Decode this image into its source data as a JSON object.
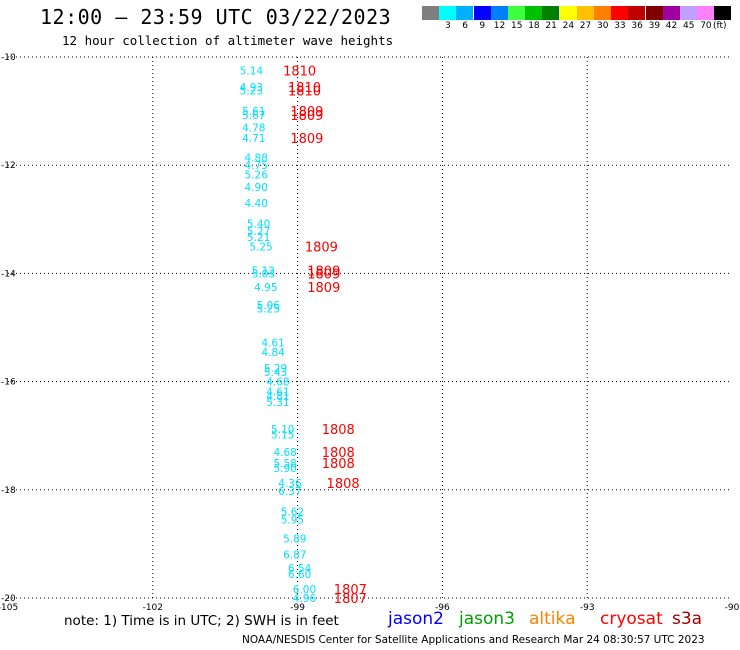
{
  "header": {
    "title": "12:00 – 23:59 UTC 03/22/2023",
    "subtitle": "12 hour collection of altimeter wave heights"
  },
  "color_legend": {
    "unit": "(ft)",
    "entries": [
      {
        "label": "",
        "color": "#7f7f7f"
      },
      {
        "label": "3",
        "color": "#00ffff"
      },
      {
        "label": "6",
        "color": "#00b0ff"
      },
      {
        "label": "9",
        "color": "#0000ff"
      },
      {
        "label": "12",
        "color": "#007fff"
      },
      {
        "label": "15",
        "color": "#40ff40"
      },
      {
        "label": "18",
        "color": "#00c000"
      },
      {
        "label": "21",
        "color": "#008000"
      },
      {
        "label": "24",
        "color": "#ffff00"
      },
      {
        "label": "27",
        "color": "#ffc000"
      },
      {
        "label": "30",
        "color": "#ff8000"
      },
      {
        "label": "33",
        "color": "#ff0000"
      },
      {
        "label": "36",
        "color": "#c00000"
      },
      {
        "label": "39",
        "color": "#800000"
      },
      {
        "label": "42",
        "color": "#a000a0"
      },
      {
        "label": "45",
        "color": "#c0a0ff"
      },
      {
        "label": "70",
        "color": "#ff80ff"
      },
      {
        "label": "",
        "color": "#000000"
      }
    ]
  },
  "chart_data": {
    "type": "scatter",
    "xlim": [
      -105,
      -90
    ],
    "ylim": [
      -20,
      -10
    ],
    "x_ticks": [
      -105,
      -102,
      -99,
      -96,
      -93,
      -90
    ],
    "x_tick_labels": [
      "-105",
      "-102",
      "-99",
      "-96",
      "-93",
      "-90"
    ],
    "y_ticks": [
      -10,
      -12,
      -14,
      -16,
      -18,
      -20
    ],
    "y_tick_labels": [
      "-10",
      "-12",
      "-14",
      "-16",
      "-18",
      "-20"
    ],
    "grid": true,
    "swh_color": "#00e0ff",
    "time_color": "#ff0000",
    "swh_points": [
      {
        "lon": -100.2,
        "lat": -10.25,
        "swh": "5.14"
      },
      {
        "lon": -100.2,
        "lat": -10.55,
        "swh": "4.93"
      },
      {
        "lon": -100.2,
        "lat": -10.62,
        "swh": "5.23"
      },
      {
        "lon": -100.15,
        "lat": -11.0,
        "swh": "5.61"
      },
      {
        "lon": -100.15,
        "lat": -11.07,
        "swh": "5.67"
      },
      {
        "lon": -100.15,
        "lat": -11.3,
        "swh": "4.78"
      },
      {
        "lon": -100.15,
        "lat": -11.5,
        "swh": "4.71"
      },
      {
        "lon": -100.1,
        "lat": -11.86,
        "swh": "4.88"
      },
      {
        "lon": -100.1,
        "lat": -12.0,
        "swh": "4.75"
      },
      {
        "lon": -100.1,
        "lat": -12.17,
        "swh": "5.26"
      },
      {
        "lon": -100.1,
        "lat": -12.4,
        "swh": "4.90"
      },
      {
        "lon": -100.1,
        "lat": -12.7,
        "swh": "4.40"
      },
      {
        "lon": -100.05,
        "lat": -13.08,
        "swh": "5.40"
      },
      {
        "lon": -100.05,
        "lat": -13.22,
        "swh": "5.27"
      },
      {
        "lon": -100.05,
        "lat": -13.33,
        "swh": "5.21"
      },
      {
        "lon": -100.0,
        "lat": -13.5,
        "swh": "5.25"
      },
      {
        "lon": -99.95,
        "lat": -13.95,
        "swh": "5.12"
      },
      {
        "lon": -99.95,
        "lat": -14.0,
        "swh": "5.03"
      },
      {
        "lon": -99.9,
        "lat": -14.25,
        "swh": "4.95"
      },
      {
        "lon": -99.85,
        "lat": -14.58,
        "swh": "5.06"
      },
      {
        "lon": -99.85,
        "lat": -14.65,
        "swh": "5.25"
      },
      {
        "lon": -99.75,
        "lat": -15.28,
        "swh": "4.61"
      },
      {
        "lon": -99.75,
        "lat": -15.45,
        "swh": "4.84"
      },
      {
        "lon": -99.7,
        "lat": -15.75,
        "swh": "5.29"
      },
      {
        "lon": -99.7,
        "lat": -15.82,
        "swh": "5.43"
      },
      {
        "lon": -99.65,
        "lat": -16.0,
        "swh": "4.68"
      },
      {
        "lon": -99.65,
        "lat": -16.18,
        "swh": "4.61"
      },
      {
        "lon": -99.65,
        "lat": -16.27,
        "swh": "4.81"
      },
      {
        "lon": -99.65,
        "lat": -16.38,
        "swh": "5.31"
      },
      {
        "lon": -99.55,
        "lat": -16.88,
        "swh": "5.10"
      },
      {
        "lon": -99.55,
        "lat": -16.98,
        "swh": "5.15"
      },
      {
        "lon": -99.5,
        "lat": -17.3,
        "swh": "4.68"
      },
      {
        "lon": -99.5,
        "lat": -17.5,
        "swh": "5.58"
      },
      {
        "lon": -99.5,
        "lat": -17.6,
        "swh": "5.90"
      },
      {
        "lon": -99.4,
        "lat": -17.87,
        "swh": "4.36"
      },
      {
        "lon": -99.4,
        "lat": -18.02,
        "swh": "6.37"
      },
      {
        "lon": -99.35,
        "lat": -18.4,
        "swh": "5.62"
      },
      {
        "lon": -99.35,
        "lat": -18.55,
        "swh": "5.95"
      },
      {
        "lon": -99.3,
        "lat": -18.9,
        "swh": "5.89"
      },
      {
        "lon": -99.3,
        "lat": -19.2,
        "swh": "6.87"
      },
      {
        "lon": -99.2,
        "lat": -19.45,
        "swh": "6.54"
      },
      {
        "lon": -99.2,
        "lat": -19.56,
        "swh": "6.60"
      },
      {
        "lon": -99.1,
        "lat": -19.83,
        "swh": "6.00"
      },
      {
        "lon": -99.1,
        "lat": -20.0,
        "swh": "4.96"
      }
    ],
    "time_labels": [
      {
        "lon": -99.3,
        "lat": -10.25,
        "text": "1810"
      },
      {
        "lon": -99.2,
        "lat": -10.55,
        "text": "1810"
      },
      {
        "lon": -99.2,
        "lat": -10.62,
        "text": "1810"
      },
      {
        "lon": -99.15,
        "lat": -11.0,
        "text": "1809"
      },
      {
        "lon": -99.15,
        "lat": -11.07,
        "text": "1809"
      },
      {
        "lon": -99.15,
        "lat": -11.5,
        "text": "1809"
      },
      {
        "lon": -98.85,
        "lat": -13.5,
        "text": "1809"
      },
      {
        "lon": -98.8,
        "lat": -13.95,
        "text": "1809"
      },
      {
        "lon": -98.8,
        "lat": -14.0,
        "text": "1809"
      },
      {
        "lon": -98.8,
        "lat": -14.25,
        "text": "1809"
      },
      {
        "lon": -98.5,
        "lat": -16.88,
        "text": "1808"
      },
      {
        "lon": -98.5,
        "lat": -17.3,
        "text": "1808"
      },
      {
        "lon": -98.5,
        "lat": -17.5,
        "text": "1808"
      },
      {
        "lon": -98.4,
        "lat": -17.87,
        "text": "1808"
      },
      {
        "lon": -98.25,
        "lat": -19.83,
        "text": "1807"
      },
      {
        "lon": -98.25,
        "lat": -20.0,
        "text": "1807"
      }
    ]
  },
  "footer": {
    "note": "note:  1) Time is in UTC; 2) SWH is in feet",
    "credit": "NOAA/NESDIS Center for Satellite Applications and Research     Mar 24 08:30:57 UTC 2023",
    "satellites": [
      {
        "name": "jason2",
        "color": "#0000ff"
      },
      {
        "name": "jason3",
        "color": "#00a000"
      },
      {
        "name": "altika",
        "color": "#ff8000"
      },
      {
        "name": "cryosat",
        "color": "#ff0000"
      },
      {
        "name": "s3a",
        "color": "#a00000"
      }
    ]
  }
}
